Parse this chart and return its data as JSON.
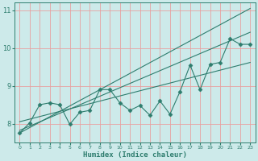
{
  "xlabel": "Humidex (Indice chaleur)",
  "background_color": "#cdeaea",
  "grid_color": "#e8a0a0",
  "line_color": "#2e7d6e",
  "xlim": [
    -0.5,
    23.5
  ],
  "ylim": [
    7.5,
    11.2
  ],
  "yticks": [
    8,
    9,
    10,
    11
  ],
  "xticks": [
    0,
    1,
    2,
    3,
    4,
    5,
    6,
    7,
    8,
    9,
    10,
    11,
    12,
    13,
    14,
    15,
    16,
    17,
    18,
    19,
    20,
    21,
    22,
    23
  ],
  "data_x": [
    0,
    1,
    2,
    3,
    4,
    5,
    6,
    7,
    8,
    9,
    10,
    11,
    12,
    13,
    14,
    15,
    16,
    17,
    18,
    19,
    20,
    21,
    22,
    23
  ],
  "data_y": [
    7.75,
    8.02,
    8.5,
    8.55,
    8.5,
    7.98,
    8.3,
    8.35,
    8.9,
    8.9,
    8.55,
    8.35,
    8.48,
    8.22,
    8.6,
    8.25,
    8.85,
    9.55,
    8.9,
    9.57,
    9.62,
    10.25,
    10.1,
    10.1
  ],
  "trend1_x": [
    0,
    23
  ],
  "trend1_y": [
    7.75,
    11.05
  ],
  "trend2_x": [
    0,
    23
  ],
  "trend2_y": [
    8.05,
    9.62
  ],
  "trend3_x": [
    0,
    23
  ],
  "trend3_y": [
    7.82,
    10.42
  ]
}
